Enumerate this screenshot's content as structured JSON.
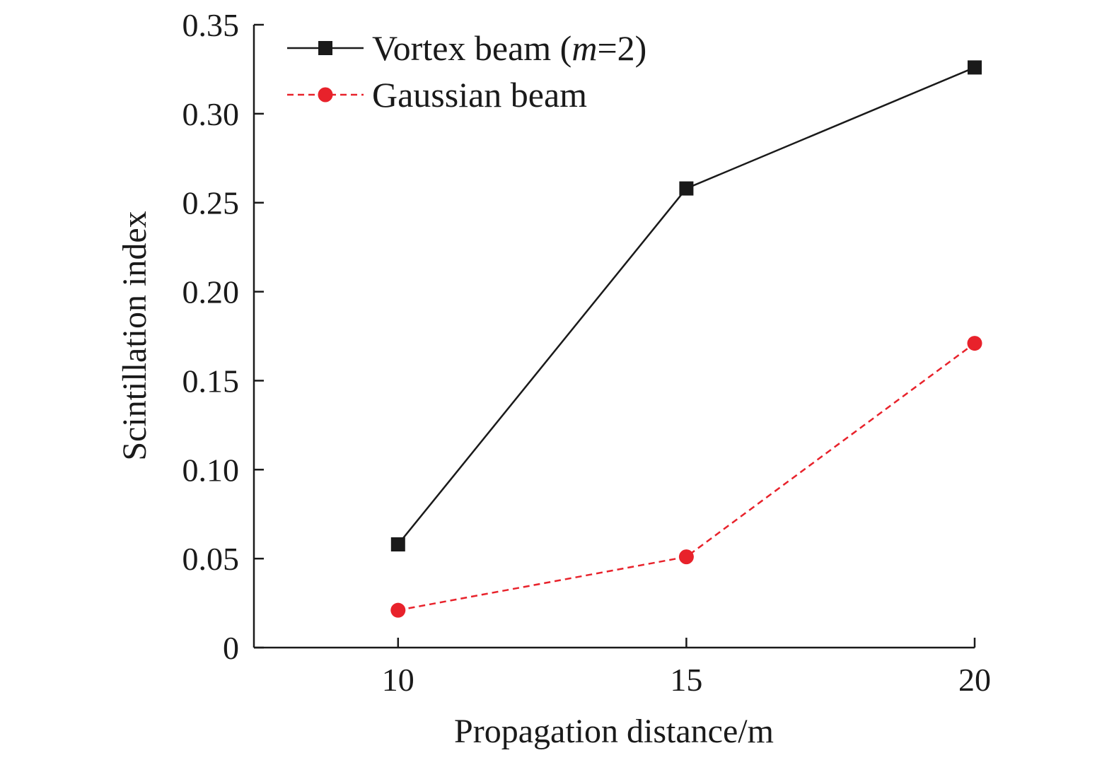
{
  "chart_data": {
    "type": "line",
    "title": "",
    "xlabel": "Propagation distance/m",
    "ylabel": "Scintillation index",
    "x": [
      10,
      15,
      20
    ],
    "xlim": [
      7.5,
      20
    ],
    "ylim": [
      0,
      0.35
    ],
    "x_ticks": [
      10,
      15,
      20
    ],
    "x_tick_labels": [
      "10",
      "15",
      "20"
    ],
    "y_ticks": [
      0,
      0.05,
      0.1,
      0.15,
      0.2,
      0.25,
      0.3,
      0.35
    ],
    "y_tick_labels": [
      "0",
      "0.05",
      "0.10",
      "0.15",
      "0.20",
      "0.25",
      "0.30",
      "0.35"
    ],
    "grid": false,
    "legend_position": "top-left",
    "series": [
      {
        "name": "Vortex beam (m=2)",
        "name_prefix": "Vortex beam (",
        "name_italic": "m",
        "name_suffix": "=2)",
        "values": [
          0.058,
          0.258,
          0.326
        ],
        "color": "#1a1a1a",
        "marker": "square",
        "dash": "solid"
      },
      {
        "name": "Gaussian beam",
        "values": [
          0.021,
          0.051,
          0.171
        ],
        "color": "#e8222b",
        "marker": "circle",
        "dash": "dashed"
      }
    ]
  }
}
